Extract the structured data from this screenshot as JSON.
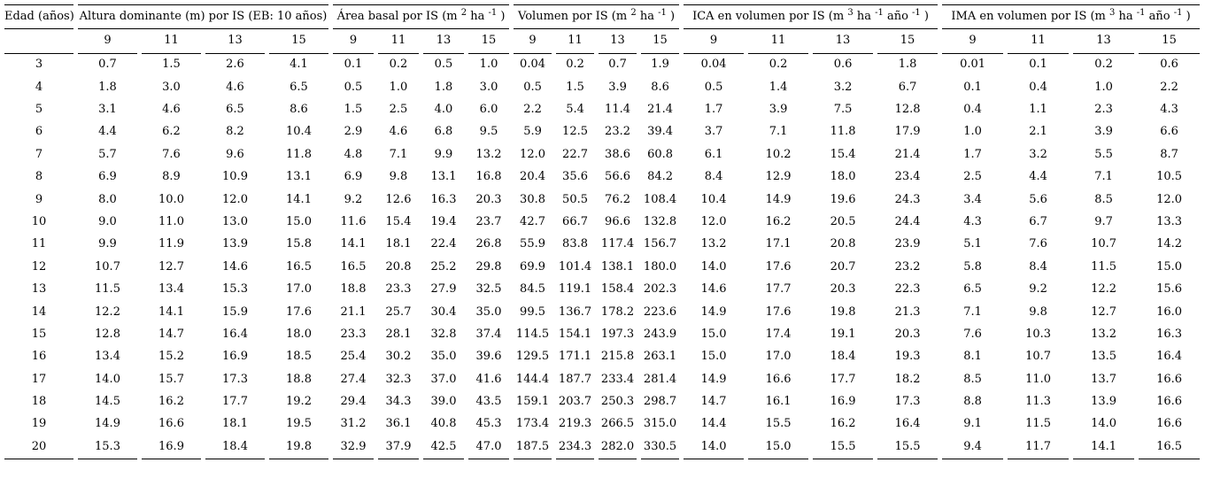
{
  "colors": {
    "background": "#ffffff",
    "text": "#000000",
    "rule": "#000000"
  },
  "table": {
    "edad_header": "Edad (años)",
    "groups": [
      {
        "label": "Altura dominante (m) por IS (EB: 10 años)",
        "sub": [
          "9",
          "11",
          "13",
          "15"
        ]
      },
      {
        "label": "Área basal por IS (m ^{2} ha ^{-1} )",
        "sub": [
          "9",
          "11",
          "13",
          "15"
        ]
      },
      {
        "label": "Volumen por IS (m ^{2} ha ^{-1} )",
        "sub": [
          "9",
          "11",
          "13",
          "15"
        ]
      },
      {
        "label": "ICA en volumen por IS (m ^{3} ha ^{-1} año ^{-1} )",
        "sub": [
          "9",
          "11",
          "13",
          "15"
        ]
      },
      {
        "label": "IMA en volumen por IS (m ^{3} ha ^{-1} año ^{-1} )",
        "sub": [
          "9",
          "11",
          "13",
          "15"
        ]
      }
    ],
    "rows": [
      {
        "edad": "3",
        "values": [
          "0.7",
          "1.5",
          "2.6",
          "4.1",
          "0.1",
          "0.2",
          "0.5",
          "1.0",
          "0.04",
          "0.2",
          "0.7",
          "1.9",
          "0.04",
          "0.2",
          "0.6",
          "1.8",
          "0.01",
          "0.1",
          "0.2",
          "0.6"
        ]
      },
      {
        "edad": "4",
        "values": [
          "1.8",
          "3.0",
          "4.6",
          "6.5",
          "0.5",
          "1.0",
          "1.8",
          "3.0",
          "0.5",
          "1.5",
          "3.9",
          "8.6",
          "0.5",
          "1.4",
          "3.2",
          "6.7",
          "0.1",
          "0.4",
          "1.0",
          "2.2"
        ]
      },
      {
        "edad": "5",
        "values": [
          "3.1",
          "4.6",
          "6.5",
          "8.6",
          "1.5",
          "2.5",
          "4.0",
          "6.0",
          "2.2",
          "5.4",
          "11.4",
          "21.4",
          "1.7",
          "3.9",
          "7.5",
          "12.8",
          "0.4",
          "1.1",
          "2.3",
          "4.3"
        ]
      },
      {
        "edad": "6",
        "values": [
          "4.4",
          "6.2",
          "8.2",
          "10.4",
          "2.9",
          "4.6",
          "6.8",
          "9.5",
          "5.9",
          "12.5",
          "23.2",
          "39.4",
          "3.7",
          "7.1",
          "11.8",
          "17.9",
          "1.0",
          "2.1",
          "3.9",
          "6.6"
        ]
      },
      {
        "edad": "7",
        "values": [
          "5.7",
          "7.6",
          "9.6",
          "11.8",
          "4.8",
          "7.1",
          "9.9",
          "13.2",
          "12.0",
          "22.7",
          "38.6",
          "60.8",
          "6.1",
          "10.2",
          "15.4",
          "21.4",
          "1.7",
          "3.2",
          "5.5",
          "8.7"
        ]
      },
      {
        "edad": "8",
        "values": [
          "6.9",
          "8.9",
          "10.9",
          "13.1",
          "6.9",
          "9.8",
          "13.1",
          "16.8",
          "20.4",
          "35.6",
          "56.6",
          "84.2",
          "8.4",
          "12.9",
          "18.0",
          "23.4",
          "2.5",
          "4.4",
          "7.1",
          "10.5"
        ]
      },
      {
        "edad": "9",
        "values": [
          "8.0",
          "10.0",
          "12.0",
          "14.1",
          "9.2",
          "12.6",
          "16.3",
          "20.3",
          "30.8",
          "50.5",
          "76.2",
          "108.4",
          "10.4",
          "14.9",
          "19.6",
          "24.3",
          "3.4",
          "5.6",
          "8.5",
          "12.0"
        ]
      },
      {
        "edad": "10",
        "values": [
          "9.0",
          "11.0",
          "13.0",
          "15.0",
          "11.6",
          "15.4",
          "19.4",
          "23.7",
          "42.7",
          "66.7",
          "96.6",
          "132.8",
          "12.0",
          "16.2",
          "20.5",
          "24.4",
          "4.3",
          "6.7",
          "9.7",
          "13.3"
        ]
      },
      {
        "edad": "11",
        "values": [
          "9.9",
          "11.9",
          "13.9",
          "15.8",
          "14.1",
          "18.1",
          "22.4",
          "26.8",
          "55.9",
          "83.8",
          "117.4",
          "156.7",
          "13.2",
          "17.1",
          "20.8",
          "23.9",
          "5.1",
          "7.6",
          "10.7",
          "14.2"
        ]
      },
      {
        "edad": "12",
        "values": [
          "10.7",
          "12.7",
          "14.6",
          "16.5",
          "16.5",
          "20.8",
          "25.2",
          "29.8",
          "69.9",
          "101.4",
          "138.1",
          "180.0",
          "14.0",
          "17.6",
          "20.7",
          "23.2",
          "5.8",
          "8.4",
          "11.5",
          "15.0"
        ]
      },
      {
        "edad": "13",
        "values": [
          "11.5",
          "13.4",
          "15.3",
          "17.0",
          "18.8",
          "23.3",
          "27.9",
          "32.5",
          "84.5",
          "119.1",
          "158.4",
          "202.3",
          "14.6",
          "17.7",
          "20.3",
          "22.3",
          "6.5",
          "9.2",
          "12.2",
          "15.6"
        ]
      },
      {
        "edad": "14",
        "values": [
          "12.2",
          "14.1",
          "15.9",
          "17.6",
          "21.1",
          "25.7",
          "30.4",
          "35.0",
          "99.5",
          "136.7",
          "178.2",
          "223.6",
          "14.9",
          "17.6",
          "19.8",
          "21.3",
          "7.1",
          "9.8",
          "12.7",
          "16.0"
        ]
      },
      {
        "edad": "15",
        "values": [
          "12.8",
          "14.7",
          "16.4",
          "18.0",
          "23.3",
          "28.1",
          "32.8",
          "37.4",
          "114.5",
          "154.1",
          "197.3",
          "243.9",
          "15.0",
          "17.4",
          "19.1",
          "20.3",
          "7.6",
          "10.3",
          "13.2",
          "16.3"
        ]
      },
      {
        "edad": "16",
        "values": [
          "13.4",
          "15.2",
          "16.9",
          "18.5",
          "25.4",
          "30.2",
          "35.0",
          "39.6",
          "129.5",
          "171.1",
          "215.8",
          "263.1",
          "15.0",
          "17.0",
          "18.4",
          "19.3",
          "8.1",
          "10.7",
          "13.5",
          "16.4"
        ]
      },
      {
        "edad": "17",
        "values": [
          "14.0",
          "15.7",
          "17.3",
          "18.8",
          "27.4",
          "32.3",
          "37.0",
          "41.6",
          "144.4",
          "187.7",
          "233.4",
          "281.4",
          "14.9",
          "16.6",
          "17.7",
          "18.2",
          "8.5",
          "11.0",
          "13.7",
          "16.6"
        ]
      },
      {
        "edad": "18",
        "values": [
          "14.5",
          "16.2",
          "17.7",
          "19.2",
          "29.4",
          "34.3",
          "39.0",
          "43.5",
          "159.1",
          "203.7",
          "250.3",
          "298.7",
          "14.7",
          "16.1",
          "16.9",
          "17.3",
          "8.8",
          "11.3",
          "13.9",
          "16.6"
        ]
      },
      {
        "edad": "19",
        "values": [
          "14.9",
          "16.6",
          "18.1",
          "19.5",
          "31.2",
          "36.1",
          "40.8",
          "45.3",
          "173.4",
          "219.3",
          "266.5",
          "315.0",
          "14.4",
          "15.5",
          "16.2",
          "16.4",
          "9.1",
          "11.5",
          "14.0",
          "16.6"
        ]
      },
      {
        "edad": "20",
        "values": [
          "15.3",
          "16.9",
          "18.4",
          "19.8",
          "32.9",
          "37.9",
          "42.5",
          "47.0",
          "187.5",
          "234.3",
          "282.0",
          "330.5",
          "14.0",
          "15.0",
          "15.5",
          "15.5",
          "9.4",
          "11.7",
          "14.1",
          "16.5"
        ]
      }
    ],
    "layout": {
      "edad_col_width": 78,
      "group_col_widths": [
        67,
        46,
        43,
        68,
        69
      ]
    }
  }
}
